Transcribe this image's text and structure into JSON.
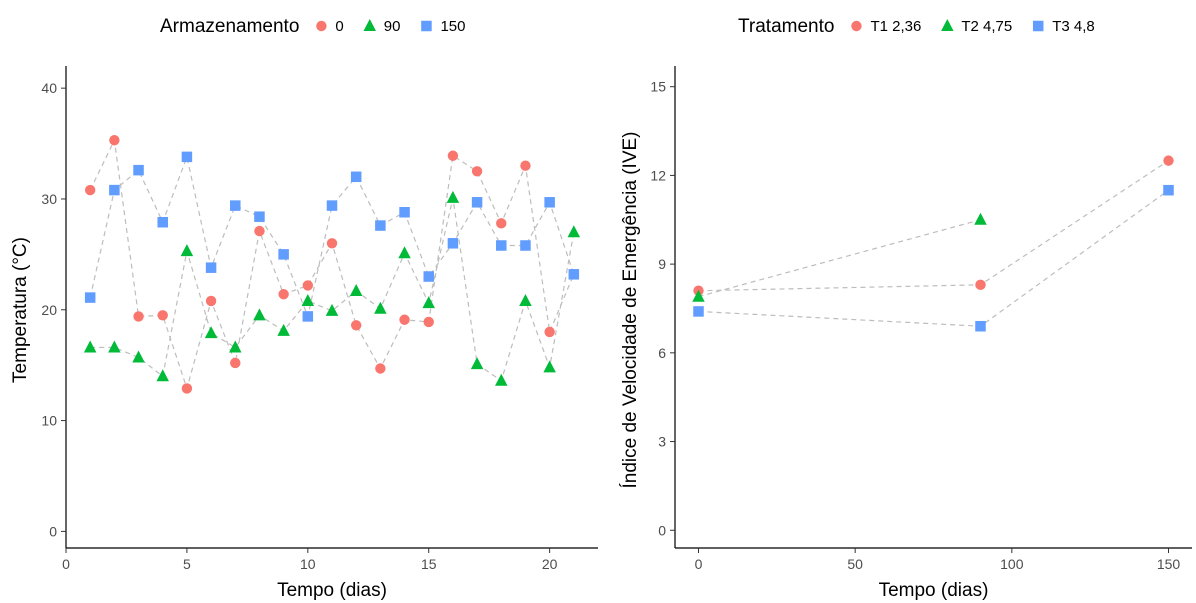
{
  "chart_data": [
    {
      "type": "scatter",
      "title": "",
      "xlabel": "Tempo (dias)",
      "ylabel": "Temperatura (°C)",
      "xlim": [
        0,
        22
      ],
      "ylim": [
        -1.5,
        42
      ],
      "xticks": [
        0,
        5,
        10,
        15,
        20
      ],
      "yticks": [
        0,
        10,
        20,
        30,
        40
      ],
      "grid": false,
      "connect_lines": "dashed",
      "legend": {
        "title": "Armazenamento",
        "position": "top"
      },
      "series": [
        {
          "name": "0",
          "color": "#F8766D",
          "marker": "circle",
          "x": [
            1,
            2,
            3,
            4,
            5,
            6,
            7,
            8,
            9,
            10,
            11,
            12,
            13,
            14,
            15,
            16,
            17,
            18,
            19,
            20,
            21
          ],
          "y": [
            30.8,
            35.3,
            19.4,
            19.5,
            12.9,
            20.8,
            15.2,
            27.1,
            21.4,
            22.2,
            26.0,
            18.6,
            14.7,
            19.1,
            18.9,
            33.9,
            32.5,
            27.8,
            33.0,
            18.0,
            23.2
          ]
        },
        {
          "name": "90",
          "color": "#00BA38",
          "marker": "triangle",
          "x": [
            1,
            2,
            3,
            4,
            5,
            6,
            7,
            8,
            9,
            10,
            11,
            12,
            13,
            14,
            15,
            16,
            17,
            18,
            19,
            20,
            21
          ],
          "y": [
            16.6,
            16.6,
            15.7,
            14.0,
            25.3,
            17.9,
            16.6,
            19.5,
            18.1,
            20.8,
            19.9,
            21.7,
            20.1,
            25.1,
            20.6,
            30.1,
            15.1,
            13.6,
            20.8,
            14.8,
            27.0
          ]
        },
        {
          "name": "150",
          "color": "#619CFF",
          "marker": "square",
          "x": [
            1,
            2,
            3,
            4,
            5,
            6,
            7,
            8,
            9,
            10,
            11,
            12,
            13,
            14,
            15,
            16,
            17,
            18,
            19,
            20,
            21
          ],
          "y": [
            21.1,
            30.8,
            32.6,
            27.9,
            33.8,
            23.8,
            29.4,
            28.4,
            25.0,
            19.4,
            29.4,
            32.0,
            27.6,
            28.8,
            23.0,
            26.0,
            29.7,
            25.8,
            25.8,
            29.7,
            23.2
          ]
        }
      ]
    },
    {
      "type": "scatter",
      "title": "",
      "xlabel": "Tempo (dias)",
      "ylabel": "Índice de Velocidade de Emergência (IVE)",
      "xlim": [
        -7.5,
        157.5
      ],
      "ylim": [
        -0.6,
        15.7
      ],
      "xticks": [
        0,
        50,
        100,
        150
      ],
      "yticks": [
        0,
        3,
        6,
        9,
        12,
        15
      ],
      "grid": false,
      "connect_lines": "dashed",
      "legend": {
        "title": "Tratamento",
        "position": "top"
      },
      "series": [
        {
          "name": "T1 2,36",
          "color": "#F8766D",
          "marker": "circle",
          "x": [
            0,
            90,
            150
          ],
          "y": [
            8.1,
            8.3,
            12.5
          ]
        },
        {
          "name": "T2 4,75",
          "color": "#00BA38",
          "marker": "triangle",
          "x": [
            0,
            90
          ],
          "y": [
            7.9,
            10.5
          ]
        },
        {
          "name": "T3 4,8",
          "color": "#619CFF",
          "marker": "square",
          "x": [
            0,
            90,
            150
          ],
          "y": [
            7.4,
            6.9,
            11.5
          ]
        }
      ]
    }
  ]
}
